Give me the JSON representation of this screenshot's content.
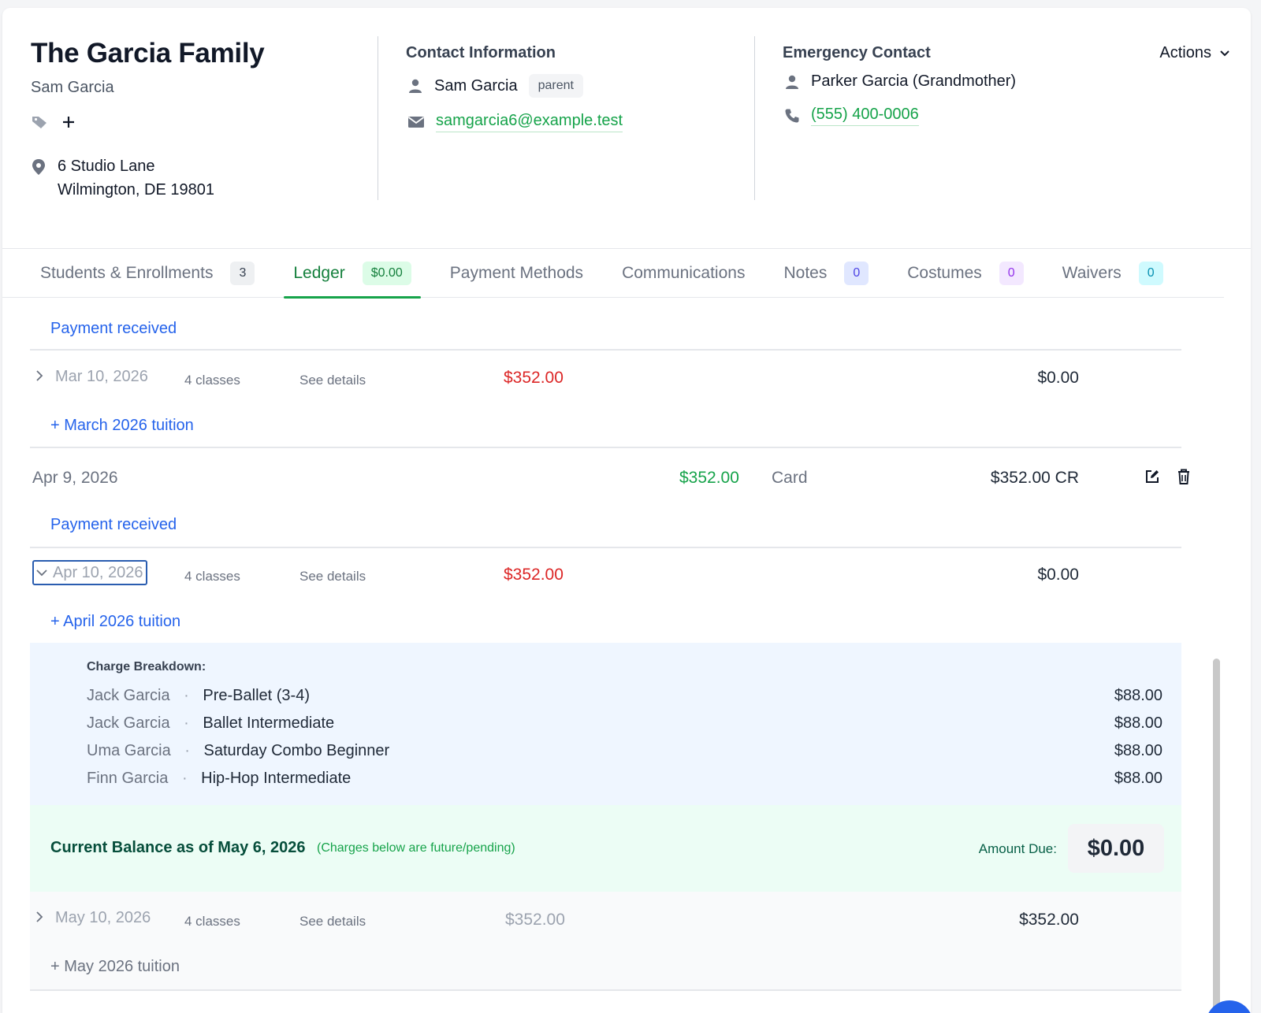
{
  "header": {
    "family_name": "The Garcia Family",
    "primary_contact": "Sam Garcia",
    "address_line1": "6 Studio Lane",
    "address_line2": "Wilmington, DE 19801",
    "actions_label": "Actions"
  },
  "contact": {
    "title": "Contact Information",
    "name": "Sam Garcia",
    "role": "parent",
    "email": "samgarcia6@example.test"
  },
  "emergency": {
    "title": "Emergency Contact",
    "name": "Parker Garcia (Grandmother)",
    "phone": "(555) 400-0006"
  },
  "tabs": [
    {
      "label": "Students & Enrollments",
      "badge": "3"
    },
    {
      "label": "Ledger",
      "badge": "$0.00"
    },
    {
      "label": "Payment Methods",
      "badge": ""
    },
    {
      "label": "Communications",
      "badge": ""
    },
    {
      "label": "Notes",
      "badge": "0"
    },
    {
      "label": "Costumes",
      "badge": "0"
    },
    {
      "label": "Waivers",
      "badge": "0"
    }
  ],
  "ledger": {
    "payment_received_top": "Payment received",
    "charge_mar": {
      "date": "Mar 10, 2026",
      "classes": "4 classes",
      "details": "See details",
      "amount": "$352.00",
      "balance": "$0.00",
      "description": "+ March 2026 tuition"
    },
    "payment_apr": {
      "date": "Apr 9, 2026",
      "amount": "$352.00",
      "method": "Card",
      "balance": "$352.00 CR",
      "description": "Payment received"
    },
    "charge_apr": {
      "date": "Apr 10, 2026",
      "classes": "4 classes",
      "details": "See details",
      "amount": "$352.00",
      "balance": "$0.00",
      "description": "+ April 2026 tuition"
    },
    "breakdown": {
      "title": "Charge Breakdown:",
      "items": [
        {
          "student": "Jack Garcia",
          "class": "Pre-Ballet (3-4)",
          "amount": "$88.00"
        },
        {
          "student": "Jack Garcia",
          "class": "Ballet Intermediate",
          "amount": "$88.00"
        },
        {
          "student": "Uma Garcia",
          "class": "Saturday Combo Beginner",
          "amount": "$88.00"
        },
        {
          "student": "Finn Garcia",
          "class": "Hip-Hop Intermediate",
          "amount": "$88.00"
        }
      ]
    },
    "current_balance": {
      "label": "Current Balance as of May 6, 2026",
      "note": "(Charges below are future/pending)",
      "amount_due_label": "Amount Due:",
      "amount_due": "$0.00"
    },
    "charge_may": {
      "date": "May 10, 2026",
      "classes": "4 classes",
      "details": "See details",
      "amount": "$352.00",
      "balance": "$352.00",
      "description": "+ May 2026 tuition"
    }
  },
  "colors": {
    "accent_green": "#16a34a",
    "link_blue": "#2563eb",
    "charge_red": "#dc2626"
  }
}
